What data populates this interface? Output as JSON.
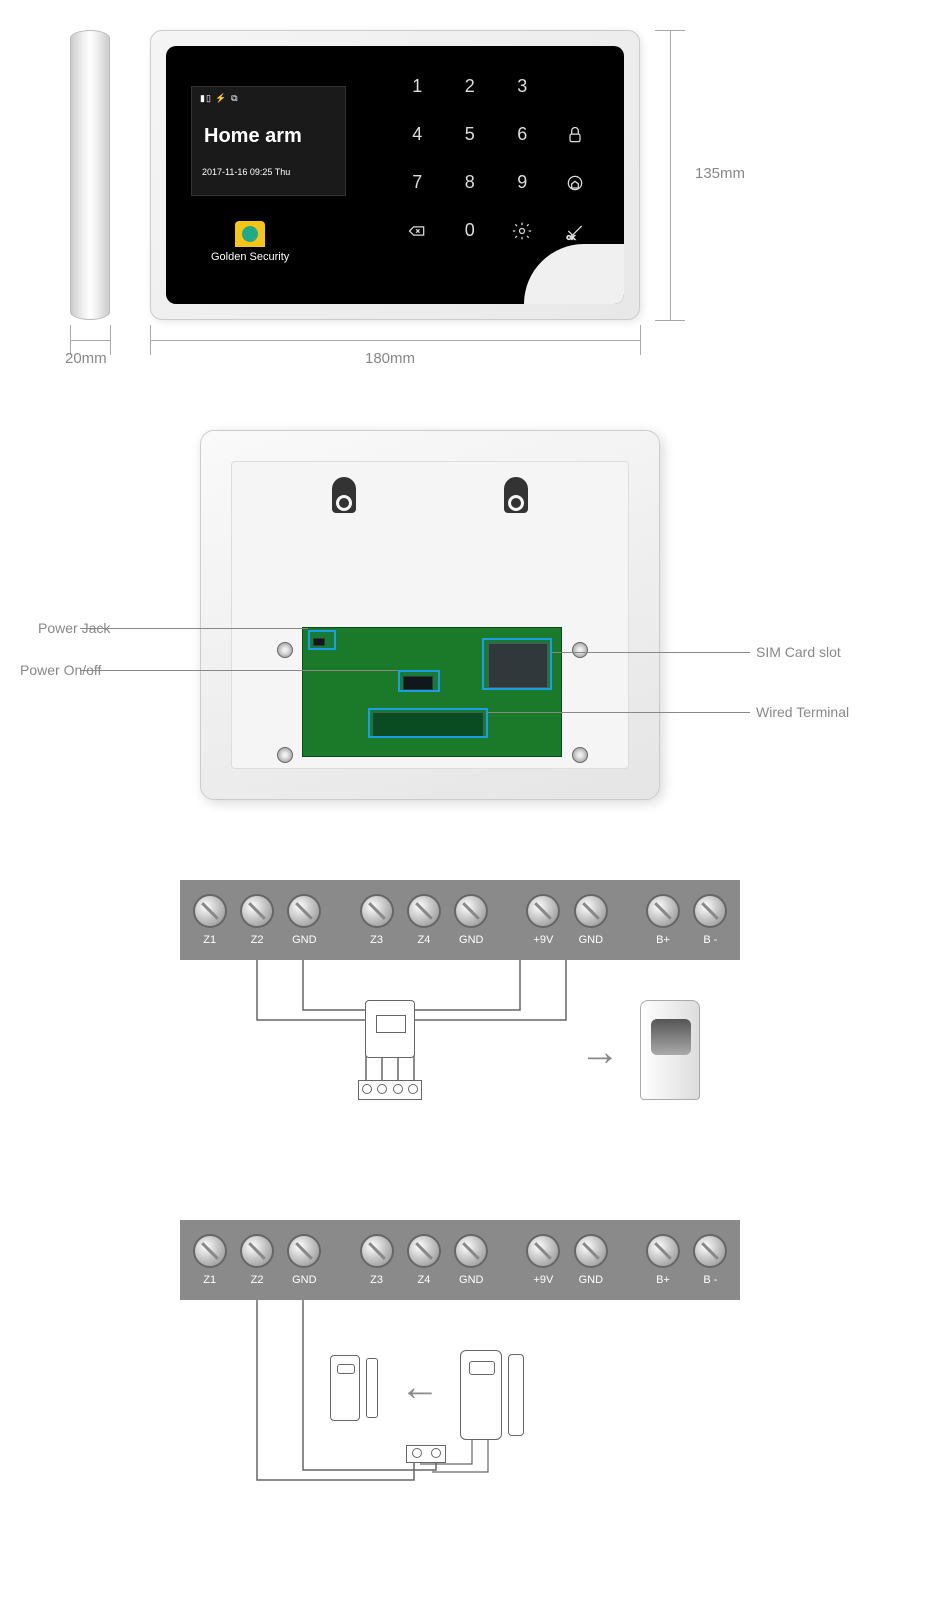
{
  "colors": {
    "bg": "#ffffff",
    "device_body": "#f0f0f0",
    "device_black": "#000000",
    "lcd_bg": "#1a1a1a",
    "lcd_text": "#ffffff",
    "brand_yellow": "#f5c518",
    "brand_green": "#22aa88",
    "dim_line": "#aaaaaa",
    "dim_text": "#888888",
    "callout_blue": "#1a9ee8",
    "pcb_green": "#1a7a2a",
    "terminal_gray": "#8a8a8a",
    "terminal_text": "#ffffff",
    "wire_line": "#666666"
  },
  "dimensions": {
    "width_label": "180mm",
    "height_label": "135mm",
    "depth_label": "20mm"
  },
  "lcd": {
    "status_icons": "▮▯  ⚡  ⧉",
    "title": "Home arm",
    "date": "2017-11-16  09:25  Thu"
  },
  "brand": {
    "name": "Golden Security"
  },
  "keypad": {
    "rows": [
      [
        "1",
        "2",
        "3",
        ""
      ],
      [
        "4",
        "5",
        "6",
        "lock"
      ],
      [
        "7",
        "8",
        "9",
        "home"
      ],
      [
        "del",
        "0",
        "gear",
        "ok"
      ]
    ],
    "label_fontsize": 18
  },
  "callouts": {
    "left": [
      {
        "label": "Power Jack"
      },
      {
        "label": "Power On/off"
      }
    ],
    "right": [
      {
        "label": "SIM Card slot"
      },
      {
        "label": "Wired Terminal"
      }
    ]
  },
  "terminals": {
    "labels": [
      "Z1",
      "Z2",
      "GND",
      "Z3",
      "Z4",
      "GND",
      "+9V",
      "GND",
      "B+",
      "B -"
    ],
    "groups": [
      [
        0,
        1,
        2
      ],
      [
        3,
        4,
        5
      ],
      [
        6,
        7
      ],
      [
        8,
        9
      ]
    ],
    "screw_diameter": 34,
    "strip_bg": "#8a8a8a"
  },
  "wiring1": {
    "connects_from": [
      "Z2",
      "GND"
    ],
    "connects_to_sensor_terminals": 4,
    "power_from": [
      "+9V",
      "GND"
    ],
    "arrow_dir": "right",
    "sensor_type": "PIR motion detector"
  },
  "wiring2": {
    "connects_from": [
      "Z2",
      "GND"
    ],
    "sensor_type": "Door contact magnetic sensor",
    "arrow_dir": "left",
    "sensor_terminals": 2
  }
}
